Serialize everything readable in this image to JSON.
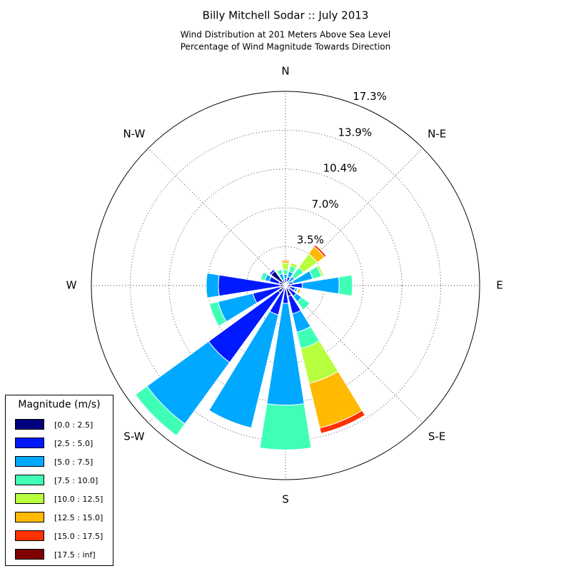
{
  "chart_data": {
    "type": "windrose",
    "title": "Billy Mitchell Sodar :: July 2013",
    "subtitle": [
      "Wind Distribution at 201 Meters Above Sea Level",
      "Percentage of Wind Magnitude Towards Direction"
    ],
    "categories": [
      "N",
      null,
      "N-E",
      null,
      "E",
      null,
      "S-E",
      null,
      "S",
      null,
      "S-W",
      null,
      "W",
      null,
      "N-W",
      null
    ],
    "rlim": [
      0,
      17.35
    ],
    "rticks": [
      {
        "value": 3.47,
        "label": "3.5%"
      },
      {
        "value": 6.94,
        "label": "7.0%"
      },
      {
        "value": 10.41,
        "label": "10.4%"
      },
      {
        "value": 13.88,
        "label": "13.9%"
      },
      {
        "value": 17.35,
        "label": "17.3%"
      }
    ],
    "grid": true,
    "legend_title": "Magnitude (m/s)",
    "legend_position": "lower-left",
    "series": [
      {
        "name": "[0.0 : 2.5]",
        "color": "#00007f",
        "values": [
          0.3,
          0.4,
          0.3,
          0.3,
          0.5,
          0.4,
          0.4,
          1.0,
          0.3,
          0.5,
          0.8,
          0.5,
          0.5,
          0.6,
          1.6,
          0.5
        ]
      },
      {
        "name": "[2.5 : 5.0]",
        "color": "#0019ff",
        "values": [
          0.3,
          0.4,
          0,
          0.4,
          1.0,
          0.5,
          0.8,
          1.6,
          1.3,
          2.2,
          7.7,
          2.5,
          5.5,
          0.9,
          0.2,
          0
        ]
      },
      {
        "name": "[5.0 : 7.5]",
        "color": "#00a8ff",
        "values": [
          0.4,
          0.5,
          0.7,
          1.8,
          3.3,
          0.2,
          0.6,
          1.7,
          9.1,
          10.4,
          6.8,
          3.2,
          1.1,
          0.4,
          0,
          0.6
        ]
      },
      {
        "name": "[7.5 : 10.0]",
        "color": "#3fffb7",
        "values": [
          0.4,
          0.5,
          1.0,
          0.8,
          1.2,
          0.1,
          0.9,
          1.5,
          4.0,
          0,
          1.3,
          0.8,
          0,
          0.4,
          0,
          0.4
        ]
      },
      {
        "name": "[10.0 : 12.5]",
        "color": "#b7ff3f",
        "values": [
          0.6,
          0.3,
          1.5,
          0.2,
          0,
          0,
          0,
          3.2,
          0,
          0,
          0,
          0,
          0,
          0,
          0,
          0
        ]
      },
      {
        "name": "[12.5 : 15.0]",
        "color": "#ffb900",
        "values": [
          0.2,
          0,
          0.8,
          0,
          0,
          0.2,
          0,
          4.1,
          0,
          0,
          0,
          0,
          0,
          0,
          0,
          0
        ]
      },
      {
        "name": "[15.0 : 17.5]",
        "color": "#ff3000",
        "values": [
          0.1,
          0,
          0.2,
          0,
          0,
          0,
          0,
          0.5,
          0,
          0,
          0,
          0,
          0,
          0,
          0,
          0
        ]
      },
      {
        "name": "[17.5 : inf]",
        "color": "#7f0000",
        "values": [
          0,
          0,
          0,
          0,
          0,
          0,
          0,
          0,
          0,
          0,
          0,
          0,
          0,
          0,
          0,
          0
        ]
      }
    ]
  }
}
